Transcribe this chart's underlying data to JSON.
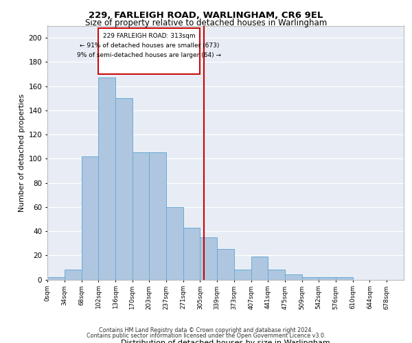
{
  "title1": "229, FARLEIGH ROAD, WARLINGHAM, CR6 9EL",
  "title2": "Size of property relative to detached houses in Warlingham",
  "xlabel": "Distribution of detached houses by size in Warlingham",
  "ylabel": "Number of detached properties",
  "footer1": "Contains HM Land Registry data © Crown copyright and database right 2024.",
  "footer2": "Contains public sector information licensed under the Open Government Licence v3.0.",
  "annotation_line1": "229 FARLEIGH ROAD: 313sqm",
  "annotation_line2": "← 91% of detached houses are smaller (673)",
  "annotation_line3": "9% of semi-detached houses are larger (64) →",
  "bin_labels": [
    "0sqm",
    "34sqm",
    "68sqm",
    "102sqm",
    "136sqm",
    "170sqm",
    "203sqm",
    "237sqm",
    "271sqm",
    "305sqm",
    "339sqm",
    "373sqm",
    "407sqm",
    "441sqm",
    "475sqm",
    "509sqm",
    "542sqm",
    "576sqm",
    "610sqm",
    "644sqm",
    "678sqm"
  ],
  "bar_heights": [
    2,
    8,
    102,
    167,
    150,
    105,
    105,
    60,
    43,
    35,
    25,
    8,
    19,
    8,
    4,
    2,
    2,
    2,
    0,
    0,
    0
  ],
  "property_line_x": 313,
  "bin_edges": [
    0,
    34,
    68,
    102,
    136,
    170,
    203,
    237,
    271,
    305,
    339,
    373,
    407,
    441,
    475,
    509,
    542,
    576,
    610,
    644,
    678,
    712
  ],
  "bar_color": "#aec6e0",
  "bar_edge_color": "#6aaad4",
  "line_color": "#cc0000",
  "bg_color": "#e8edf5",
  "grid_color": "#ffffff",
  "ylim": [
    0,
    210
  ],
  "yticks": [
    0,
    20,
    40,
    60,
    80,
    100,
    120,
    140,
    160,
    180,
    200
  ]
}
